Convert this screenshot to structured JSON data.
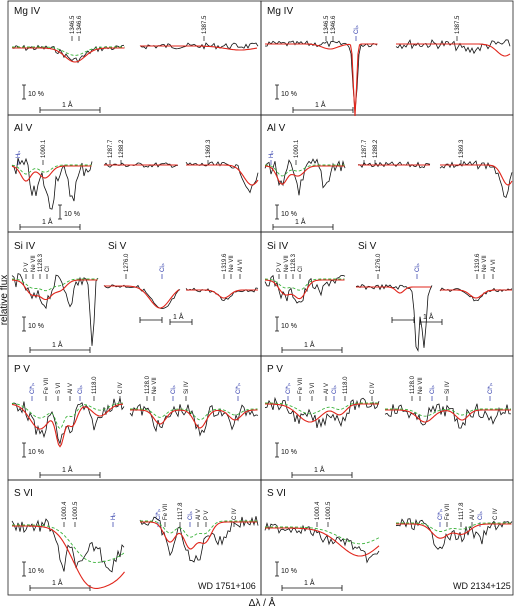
{
  "axis": {
    "ylabel": "relative flux",
    "xlabel": "Δλ / Å"
  },
  "stars": [
    "WD 1751+106",
    "WD 2134+125"
  ],
  "scale": {
    "flux": "10 %",
    "wave": "1 Å"
  },
  "colors": {
    "model": "#e0251b",
    "alt_model": "#3cb33c",
    "observed": "#111111",
    "ism": "#2a36a8"
  },
  "rows": [
    {
      "ion_labels": [
        "Mg IV",
        "Mg IV"
      ],
      "lines_left": [
        "1346.5",
        "1346.6",
        "1387.5"
      ],
      "lines_right": [
        "1346.5",
        "1346.6",
        "Cl_is",
        "1387.5"
      ]
    },
    {
      "ion_labels": [
        "Al V",
        "Al V"
      ],
      "lines_left": [
        "H_is",
        "1090.1",
        "1287.7",
        "1288.2",
        "1369.3"
      ],
      "lines_right": [
        "H_is",
        "1090.1",
        "1287.7",
        "1288.2",
        "1369.3"
      ]
    },
    {
      "ion_labels": [
        "Si IV",
        "Si V",
        "Si IV",
        "Si V"
      ],
      "lines_left": [
        "P V",
        "Ne VII",
        "1128.3",
        "Cl",
        "1276.0",
        "Cl_is",
        "1319.6",
        "Ne VII",
        "Al VI"
      ],
      "lines_right": [
        "P V",
        "Ne VII",
        "1128.3",
        "Cl",
        "1276.0",
        "Cl_is",
        "1319.6",
        "Ne VII",
        "Al VI"
      ]
    },
    {
      "ion_labels": [
        "P V",
        "P V"
      ],
      "lines_left": [
        "Cl*_is",
        "Fe VII",
        "S VI",
        "Al V",
        "Cl_is",
        "1118.0",
        "C IV",
        "1128.0",
        "Ne VII",
        "Cl_is",
        "Si IV",
        "Cl*_is"
      ],
      "lines_right": [
        "Cl*_is",
        "Fe VII",
        "S VI",
        "Al V",
        "Cl_is",
        "1118.0",
        "C IV",
        "1128.0",
        "Ne VII",
        "Cl_is",
        "Si IV",
        "Cl*_is"
      ]
    },
    {
      "ion_labels": [
        "S VI",
        "S VI"
      ],
      "lines_left": [
        "1000.4",
        "1000.5",
        "H_is",
        "Cl*_is",
        "Fe VII",
        "1117.8",
        "Cl_is",
        "Al V",
        "P V",
        "C IV"
      ],
      "lines_right": [
        "1000.4",
        "1000.5",
        "Cl*_is",
        "Fe VII",
        "1117.8",
        "Al V",
        "Cl_is",
        "C IV"
      ]
    }
  ]
}
